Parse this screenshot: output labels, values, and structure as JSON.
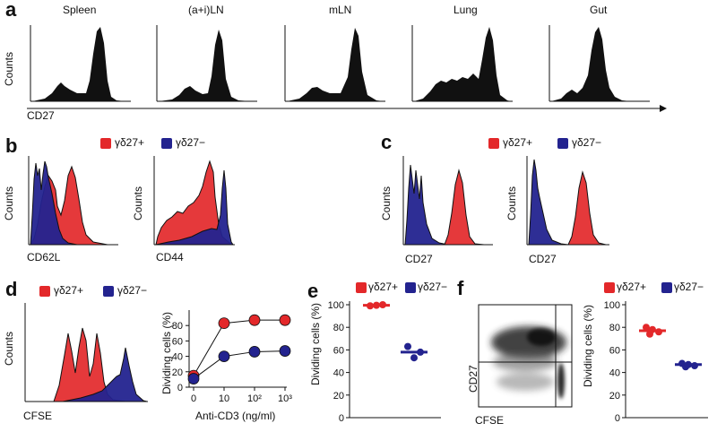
{
  "colors": {
    "red": "#e3282a",
    "blue": "#23238f",
    "black": "#111111"
  },
  "panel_a": {
    "letter": "a",
    "tissues": [
      "Spleen",
      "(a+i)LN",
      "mLN",
      "Lung",
      "Gut"
    ],
    "ylabel": "Counts",
    "xlabel": "CD27"
  },
  "panel_b": {
    "letter": "b",
    "legend": {
      "pos": "γδ27+",
      "neg": "γδ27−"
    },
    "ylabel": "Counts",
    "xlabels": [
      "CD62L",
      "CD44"
    ]
  },
  "panel_c": {
    "letter": "c",
    "legend": {
      "pos": "γδ27+",
      "neg": "γδ27−"
    },
    "ylabel": "Counts",
    "xlabels": [
      "CD27",
      "CD27"
    ]
  },
  "panel_d": {
    "letter": "d",
    "legend": {
      "pos": "γδ27+",
      "neg": "γδ27−"
    },
    "ylabel": "Counts",
    "xlabel": "CFSE"
  },
  "panel_e": {
    "letter": "e",
    "legend": {
      "pos": "γδ27+",
      "neg": "γδ27−"
    }
  },
  "panel_f": {
    "letter": "f",
    "legend": {
      "pos": "γδ27+",
      "neg": "γδ27−"
    },
    "dot_xlabel": "CFSE",
    "dot_ylabel": "CD27"
  },
  "chart_data": [
    {
      "id": "d-line",
      "type": "line",
      "title": "",
      "xlabel": "Anti-CD3 (ng/ml)",
      "ylabel": "Dividing cells (%)",
      "x": [
        0,
        10,
        100,
        1000
      ],
      "x_tick_labels": [
        "0",
        "10",
        "10²",
        "10³"
      ],
      "ylim": [
        0,
        100
      ],
      "y_ticks": [
        0,
        20,
        40,
        60,
        80
      ],
      "series": [
        {
          "name": "γδ27+",
          "color": "red",
          "values": [
            15,
            83,
            87,
            87
          ]
        },
        {
          "name": "γδ27−",
          "color": "blue",
          "values": [
            11,
            40,
            46,
            47
          ]
        }
      ]
    },
    {
      "id": "e-scatter",
      "type": "scatter",
      "title": "",
      "ylabel": "Dividing cells (%)",
      "ylim": [
        0,
        100
      ],
      "y_ticks": [
        0,
        20,
        40,
        60,
        80,
        100
      ],
      "groups": [
        {
          "name": "γδ27+",
          "color": "red",
          "values": [
            99,
            100,
            99.5
          ],
          "mean": 99.5
        },
        {
          "name": "γδ27−",
          "color": "blue",
          "values": [
            63,
            58,
            53
          ],
          "mean": 58
        }
      ]
    },
    {
      "id": "f-scatter",
      "type": "scatter",
      "title": "",
      "ylabel": "Dividing cells (%)",
      "ylim": [
        0,
        100
      ],
      "y_ticks": [
        0,
        20,
        40,
        60,
        80,
        100
      ],
      "groups": [
        {
          "name": "γδ27+",
          "color": "red",
          "values": [
            80,
            76,
            78,
            74
          ],
          "mean": 77
        },
        {
          "name": "γδ27−",
          "color": "blue",
          "values": [
            48,
            46,
            47,
            45
          ],
          "mean": 47
        }
      ]
    }
  ]
}
